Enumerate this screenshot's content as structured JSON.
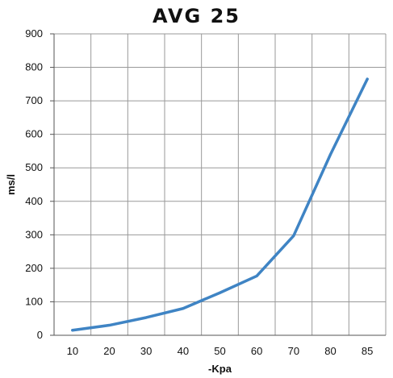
{
  "chart_data": {
    "type": "line",
    "title": "AVG 25",
    "xlabel": "-Kpa",
    "ylabel": "ms/l",
    "categories": [
      "10",
      "20",
      "30",
      "40",
      "50",
      "60",
      "70",
      "80",
      "85"
    ],
    "series": [
      {
        "values": [
          15,
          30,
          53,
          80,
          127,
          177,
          297,
          540,
          765
        ]
      }
    ],
    "ylim": [
      0,
      900
    ],
    "yticks": [
      0,
      100,
      200,
      300,
      400,
      500,
      600,
      700,
      800,
      900
    ],
    "grid": true,
    "colors": {
      "line": "#3f84c4",
      "grid": "#999999",
      "axis": "#555555"
    }
  }
}
